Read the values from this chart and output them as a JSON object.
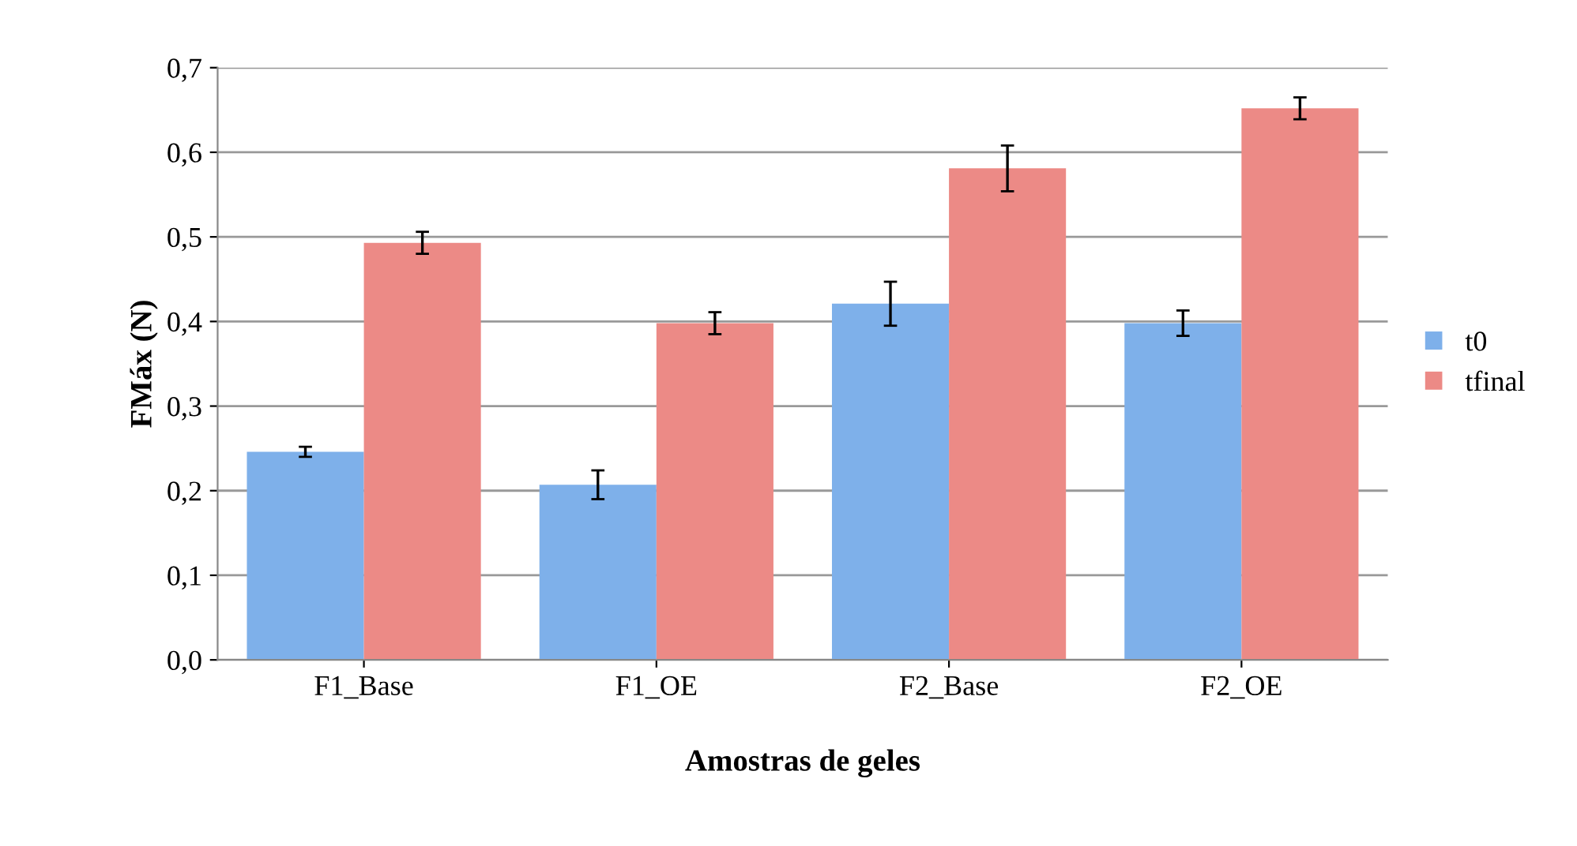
{
  "chart_data": {
    "type": "bar",
    "xlabel": "Amostras de geles",
    "ylabel": "FMáx (N)",
    "categories": [
      "F1_Base",
      "F1_OE",
      "F2_Base",
      "F2_OE"
    ],
    "series": [
      {
        "name": "t0",
        "color": "#7eb0ea",
        "values": [
          0.246,
          0.207,
          0.421,
          0.398
        ],
        "errors": [
          0.006,
          0.017,
          0.026,
          0.015
        ]
      },
      {
        "name": "tfinal",
        "color": "#ec8a86",
        "values": [
          0.493,
          0.398,
          0.581,
          0.652
        ],
        "errors": [
          0.013,
          0.013,
          0.027,
          0.013
        ]
      }
    ],
    "ylim": [
      0,
      0.7
    ],
    "yticks": [
      {
        "value": 0,
        "label": "0,0"
      },
      {
        "value": 0.1,
        "label": "0,1"
      },
      {
        "value": 0.2,
        "label": "0,2"
      },
      {
        "value": 0.3,
        "label": "0,3"
      },
      {
        "value": 0.4,
        "label": "0,4"
      },
      {
        "value": 0.5,
        "label": "0,5"
      },
      {
        "value": 0.6,
        "label": "0,6"
      },
      {
        "value": 0.7,
        "label": "0,7"
      }
    ],
    "grid": "y",
    "legend": "right"
  }
}
